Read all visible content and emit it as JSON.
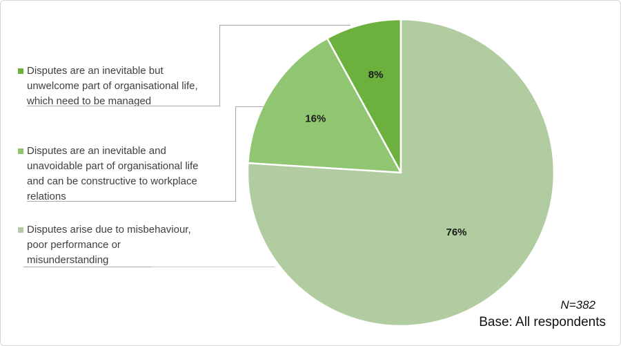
{
  "chart_data": {
    "type": "pie",
    "title": "",
    "start_angle": "12-o'clock",
    "winding": "counterclockwise",
    "legend_position": "left",
    "slices": [
      {
        "label": "Disputes are an inevitable but unwelcome part of organisational life, which need to be managed",
        "value": 8,
        "data_label": "8%",
        "color": "#6CB13E"
      },
      {
        "label": "Disputes are an inevitable and unavoidable part of organisational life and can be constructive to workplace relations",
        "value": 16,
        "data_label": "16%",
        "color": "#90C571"
      },
      {
        "label": "Disputes arise due to misbehaviour, poor performance or misunderstanding",
        "value": 76,
        "data_label": "76%",
        "color": "#B0CCA0"
      }
    ],
    "annotations": [
      "N=382",
      "Base: All respondents"
    ]
  },
  "legend": {
    "items": [
      {
        "color": "#6CB13E",
        "lines": [
          "Disputes are an inevitable but",
          "unwelcome part of organisational life,",
          "which need to be managed"
        ]
      },
      {
        "color": "#90C571",
        "lines": [
          "Disputes are an inevitable and",
          "unavoidable part of organisational life",
          "and can be constructive to workplace",
          "relations"
        ]
      },
      {
        "color": "#B0CCA0",
        "lines": [
          "Disputes arise due to misbehaviour,",
          "poor performance or",
          "misunderstanding"
        ]
      }
    ]
  },
  "footnote": {
    "n_label": "N=382",
    "base_label": "Base: All respondents"
  },
  "colors": {
    "slice_dark_green": "#6CB13E",
    "slice_medium_green": "#90C571",
    "slice_light_green": "#B0CCA0",
    "callout_line": "#A6A6A6",
    "legend_text": "#3F3F3F",
    "label_text": "#1A1A1A"
  }
}
